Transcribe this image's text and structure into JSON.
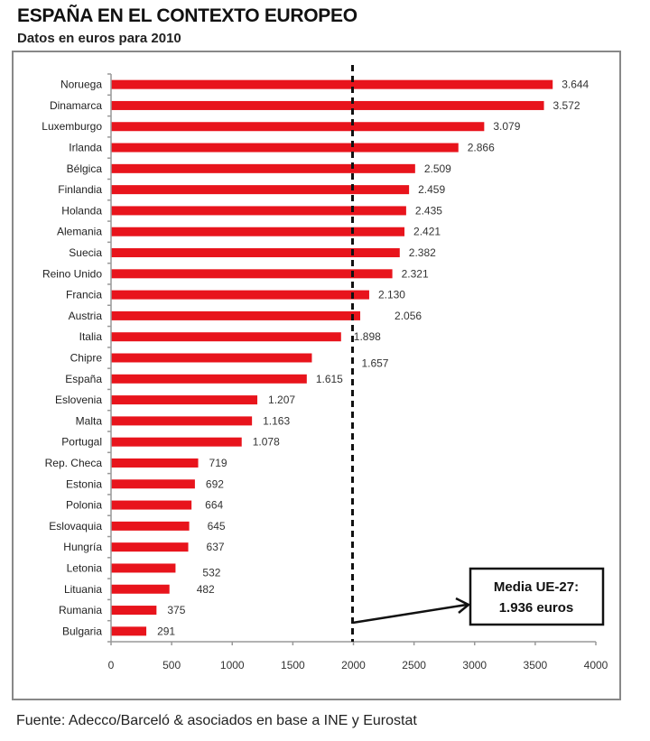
{
  "chart_data": {
    "type": "bar",
    "orientation": "horizontal",
    "title": "ESPAÑA EN EL CONTEXTO EUROPEO",
    "subtitle": "Datos en euros para 2010",
    "xlabel": "",
    "ylabel": "",
    "xlim": [
      0,
      4000
    ],
    "xticks": [
      "0",
      "500",
      "1000",
      "1500",
      "2000",
      "2500",
      "3000",
      "3500",
      "4000"
    ],
    "xtick_values": [
      0,
      500,
      1000,
      1500,
      2000,
      2500,
      3000,
      3500,
      4000
    ],
    "grid": false,
    "bar_color": "#e8141c",
    "categories": [
      "Noruega",
      "Dinamarca",
      "Luxemburgo",
      "Irlanda",
      "Bélgica",
      "Finlandia",
      "Holanda",
      "Alemania",
      "Suecia",
      "Reino Unido",
      "Francia",
      "Austria",
      "Italia",
      "Chipre",
      "España",
      "Eslovenia",
      "Malta",
      "Portugal",
      "Rep. Checa",
      "Estonia",
      "Polonia",
      "Eslovaquia",
      "Hungría",
      "Letonia",
      "Lituania",
      "Rumania",
      "Bulgaria"
    ],
    "values": [
      3644,
      3572,
      3079,
      2866,
      2509,
      2459,
      2435,
      2421,
      2382,
      2321,
      2130,
      2056,
      1898,
      1657,
      1615,
      1207,
      1163,
      1078,
      719,
      692,
      664,
      645,
      637,
      532,
      482,
      375,
      291
    ],
    "value_labels": [
      "3.644",
      "3.572",
      "3.079",
      "2.866",
      "2.509",
      "2.459",
      "2.435",
      "2.421",
      "2.382",
      "2.321",
      "2.130",
      "2.056",
      "1.898",
      "1.657",
      "1.615",
      "1.207",
      "1.163",
      "1.078",
      "719",
      "692",
      "664",
      "645",
      "637",
      "532",
      "482",
      "375",
      "291"
    ],
    "reference_line": {
      "value": 2000,
      "style": "dashed"
    },
    "annotation": {
      "line1": "Media UE-27:",
      "line2": "1.936 euros"
    }
  },
  "source": "Fuente: Adecco/Barceló & asociados en base a INE y Eurostat"
}
